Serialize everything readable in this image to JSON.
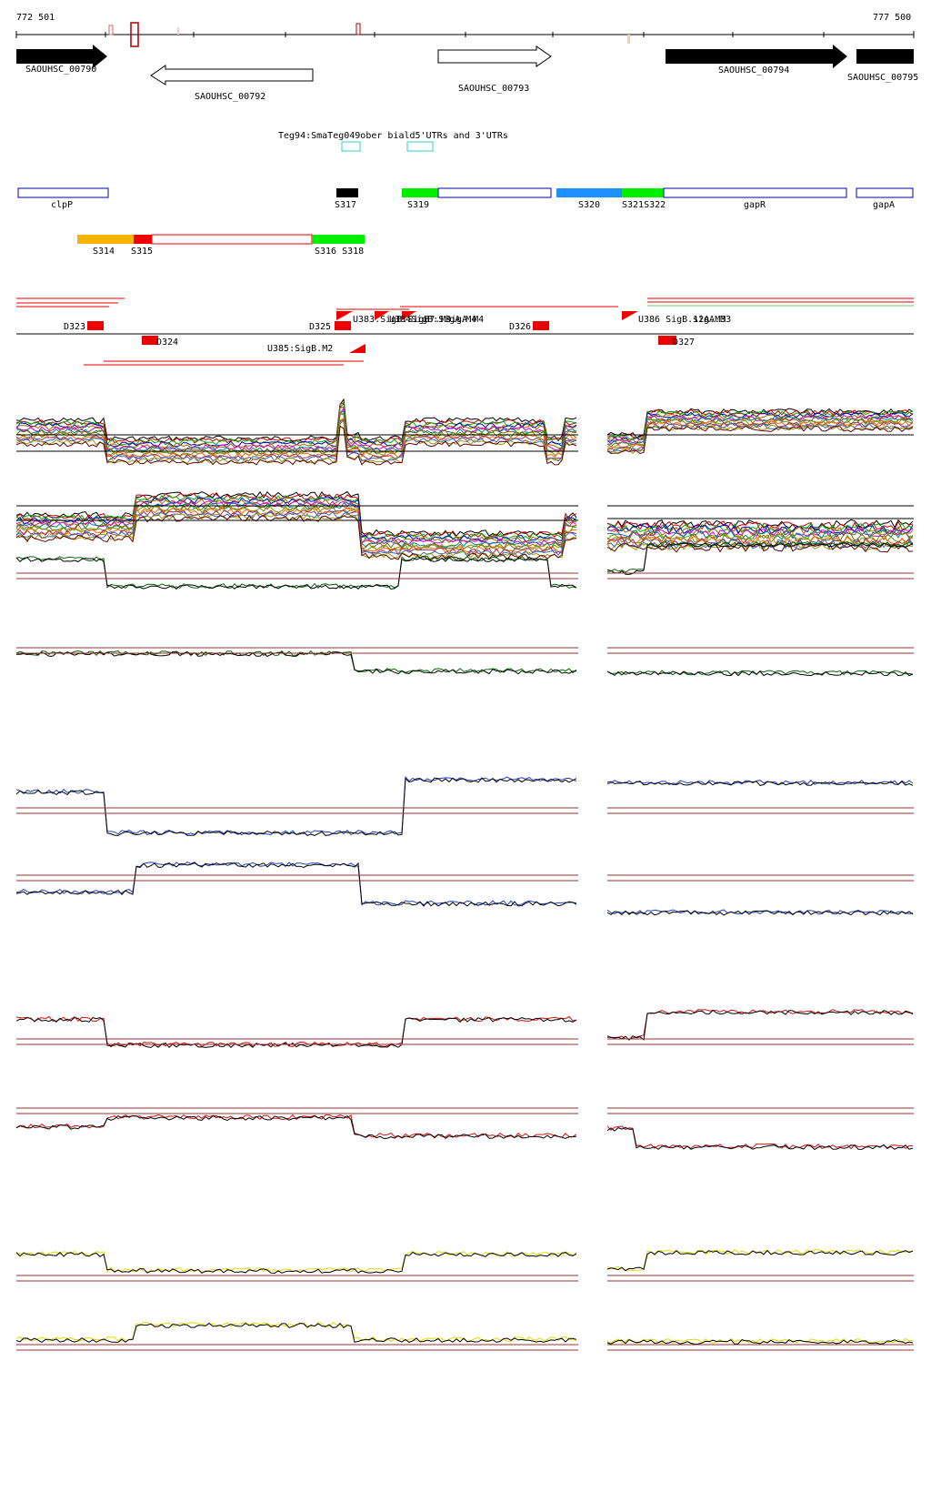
{
  "coords": {
    "start": "772 501",
    "end": "777 500"
  },
  "genes": [
    {
      "id": "SAOUHSC_00790",
      "label": "SAOUHSC_00790"
    },
    {
      "id": "SAOUHSC_00792",
      "label": "SAOUHSC_00792"
    },
    {
      "id": "SAOUHSC_00793",
      "label": "SAOUHSC_00793"
    },
    {
      "id": "SAOUHSC_00794",
      "label": "SAOUHSC_00794"
    },
    {
      "id": "SAOUHSC_00795",
      "label": "SAOUHSC_00795"
    }
  ],
  "annotation_title": "Teg94:SmaTeg049ober biald5'UTRs and 3'UTRs",
  "segment_labels": {
    "clpP": "clpP",
    "S317": "S317",
    "S319": "S319",
    "S320": "S320",
    "S321S322": "S321S322",
    "gapR": "gapR",
    "gapA": "gapA",
    "S314": "S314",
    "S315": "S315",
    "S316S318": "S316 S318"
  },
  "feature_labels": {
    "D323": "D323",
    "D324": "D324",
    "D325": "D325",
    "D326": "D326",
    "D327": "D327",
    "U383": "U383.SigB:SigB7.M3",
    "U384": "U384SigB:SigA.M4",
    "U385": "U385:SigB.M2",
    "U386": "U386 SigB.12A.M3",
    "sigA_m4": "sigA.M4",
    "sigA_m3": "sigA.M3"
  },
  "colors": {
    "gene_fill": "#000000",
    "segment_blue": "#0000aa",
    "segment_green": "#00ee00",
    "segment_orange": "#f7b500",
    "segment_red": "#ee0000",
    "segment_cyan": "#1e90ff",
    "track_green": "#006600",
    "track_blue": "#1f3fbf",
    "track_red": "#cc1111",
    "track_yellow": "#dddd00",
    "threshold": "#993333"
  }
}
